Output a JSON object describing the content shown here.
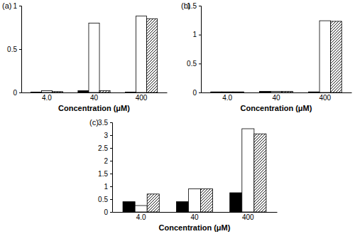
{
  "chart_data": [
    {
      "type": "bar",
      "title": "(a)",
      "x_label": "Concentration (μM)",
      "categories": [
        "4.0",
        "40",
        "400"
      ],
      "series": [
        {
          "color": "#000000",
          "values": [
            0.005,
            0.02,
            0.005
          ]
        },
        {
          "color": "#ffffff",
          "values": [
            0.02,
            0.8,
            0.88
          ]
        },
        {
          "color": "#ffffff",
          "marker": "hatched",
          "values": [
            0.01,
            0.02,
            0.85
          ]
        }
      ],
      "ylim": [
        0,
        1
      ],
      "yticks": [
        0,
        0.5,
        1
      ],
      "grid": false
    },
    {
      "type": "bar",
      "title": "(b)",
      "x_label": "Concentration (μM)",
      "categories": [
        "4.0",
        "40",
        "400"
      ],
      "series": [
        {
          "color": "#000000",
          "values": [
            0.01,
            0.02,
            0.01
          ]
        },
        {
          "color": "#ffffff",
          "values": [
            0.01,
            0.02,
            1.24
          ]
        },
        {
          "color": "#ffffff",
          "marker": "hatched",
          "values": [
            0.01,
            0.02,
            1.23
          ]
        }
      ],
      "ylim": [
        0,
        1.5
      ],
      "yticks": [
        0,
        0.5,
        1,
        1.5
      ],
      "grid": false
    },
    {
      "type": "bar",
      "title": "(c)",
      "x_label": "Concentration (μM)",
      "categories": [
        "4.0",
        "40",
        "400"
      ],
      "series": [
        {
          "color": "#000000",
          "values": [
            0.4,
            0.4,
            0.75
          ]
        },
        {
          "color": "#ffffff",
          "values": [
            0.25,
            0.9,
            3.25
          ]
        },
        {
          "color": "#ffffff",
          "marker": "hatched",
          "values": [
            0.7,
            0.9,
            3.05
          ]
        }
      ],
      "ylim": [
        0,
        3.5
      ],
      "yticks": [
        0,
        0.5,
        1,
        1.5,
        2,
        2.5,
        3,
        3.5
      ],
      "grid": false
    }
  ]
}
